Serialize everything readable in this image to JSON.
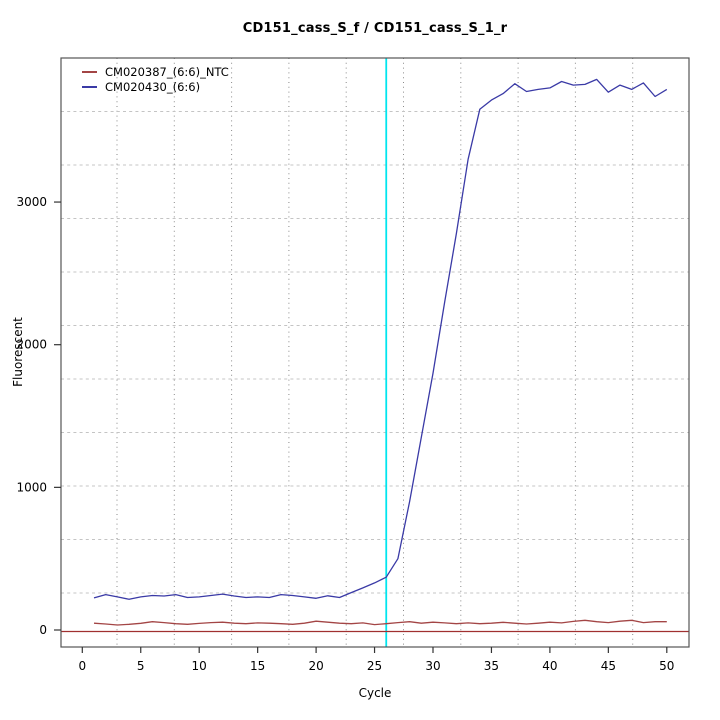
{
  "window": {
    "background": "#ffffff"
  },
  "chart_data": {
    "type": "line",
    "title": "CD151_cass_S_f / CD151_cass_S_1_r",
    "xlabel": "Cycle",
    "ylabel": "Fluorescent",
    "xlim": [
      0,
      50
    ],
    "ylim": [
      0,
      4000
    ],
    "x_ticks": [
      0,
      5,
      10,
      15,
      20,
      25,
      30,
      35,
      40,
      45,
      50
    ],
    "y_ticks": [
      0,
      1000,
      2000,
      3000
    ],
    "grid": {
      "vertical_style": "dotted",
      "horizontal_style": "dashed",
      "vertical_color": "#8a8a8a",
      "horizontal_color": "#c4c4c4"
    },
    "legend_position": "top-left",
    "threshold_cycle_line": {
      "x": 26,
      "color": "#00E5EE"
    },
    "baseline_line": {
      "y": 0,
      "color": "#A03030"
    },
    "box_color": "#555555",
    "x": [
      1,
      2,
      3,
      4,
      5,
      6,
      7,
      8,
      9,
      10,
      11,
      12,
      13,
      14,
      15,
      16,
      17,
      18,
      19,
      20,
      21,
      22,
      23,
      24,
      25,
      26,
      27,
      28,
      29,
      30,
      31,
      32,
      33,
      34,
      35,
      36,
      37,
      38,
      39,
      40,
      41,
      42,
      43,
      44,
      45,
      46,
      47,
      48,
      49,
      50
    ],
    "series": [
      {
        "name": "CM020387_(6:6)_NTC",
        "color": "#A34545",
        "values": [
          48,
          42,
          35,
          40,
          47,
          58,
          52,
          44,
          40,
          46,
          52,
          55,
          48,
          44,
          50,
          48,
          44,
          40,
          48,
          62,
          55,
          48,
          44,
          50,
          38,
          44,
          52,
          58,
          48,
          55,
          50,
          44,
          50,
          44,
          48,
          54,
          48,
          42,
          48,
          55,
          50,
          60,
          68,
          58,
          52,
          62,
          68,
          52,
          58,
          58
        ]
      },
      {
        "name": "CM020430_(6:6)",
        "color": "#3A3AA6",
        "values": [
          225,
          248,
          232,
          215,
          232,
          242,
          238,
          248,
          228,
          232,
          242,
          252,
          238,
          228,
          232,
          228,
          248,
          242,
          232,
          222,
          240,
          228,
          262,
          295,
          330,
          370,
          500,
          900,
          1350,
          1800,
          2300,
          2780,
          3300,
          3650,
          3715,
          3760,
          3830,
          3775,
          3790,
          3800,
          3845,
          3820,
          3825,
          3860,
          3770,
          3820,
          3790,
          3835,
          3740,
          3790
        ]
      }
    ]
  }
}
